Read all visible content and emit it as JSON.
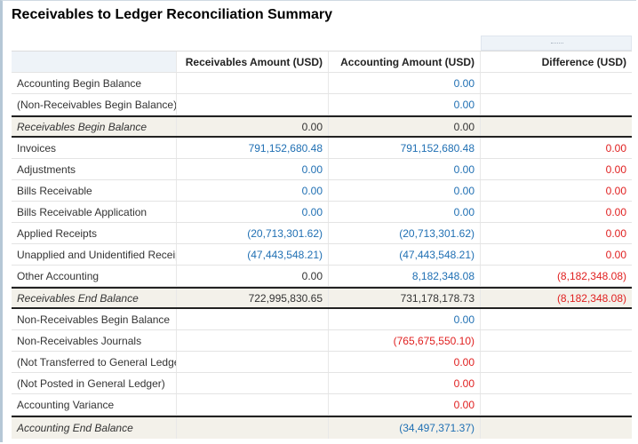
{
  "title": "Receivables to Ledger Reconciliation Summary",
  "headers": {
    "col1": "",
    "col2": "Receivables Amount (USD)",
    "col3": "Accounting Amount (USD)",
    "col4": "Difference (USD)"
  },
  "colors": {
    "link": "#1f6fb3",
    "negative": "#e02020",
    "subtotal_bg": "#f3f1ea"
  },
  "rows": [
    {
      "label": "Accounting Begin Balance",
      "recv": "",
      "acct": "0.00",
      "diff": ""
    },
    {
      "label": "(Non-Receivables Begin Balance)",
      "recv": "",
      "acct": "0.00",
      "diff": ""
    },
    {
      "label": "Receivables Begin Balance",
      "recv": "0.00",
      "acct": "0.00",
      "diff": ""
    },
    {
      "label": "Invoices",
      "recv": "791,152,680.48",
      "acct": "791,152,680.48",
      "diff": "0.00"
    },
    {
      "label": "Adjustments",
      "recv": "0.00",
      "acct": "0.00",
      "diff": "0.00"
    },
    {
      "label": "Bills Receivable",
      "recv": "0.00",
      "acct": "0.00",
      "diff": "0.00"
    },
    {
      "label": "Bills Receivable Application",
      "recv": "0.00",
      "acct": "0.00",
      "diff": "0.00"
    },
    {
      "label": "Applied Receipts",
      "recv": "(20,713,301.62)",
      "acct": "(20,713,301.62)",
      "diff": "0.00"
    },
    {
      "label": "Unapplied and Unidentified Receipts",
      "recv": "(47,443,548.21)",
      "acct": "(47,443,548.21)",
      "diff": "0.00"
    },
    {
      "label": "Other Accounting",
      "recv": "0.00",
      "acct": "8,182,348.08",
      "diff": "(8,182,348.08)"
    },
    {
      "label": "Receivables End Balance",
      "recv": "722,995,830.65",
      "acct": "731,178,178.73",
      "diff": "(8,182,348.08)"
    },
    {
      "label": "Non-Receivables Begin Balance",
      "recv": "",
      "acct": "0.00",
      "diff": ""
    },
    {
      "label": "Non-Receivables Journals",
      "recv": "",
      "acct": "(765,675,550.10)",
      "diff": ""
    },
    {
      "label": "(Not Transferred to General Ledger)",
      "recv": "",
      "acct": "0.00",
      "diff": ""
    },
    {
      "label": "(Not Posted in General Ledger)",
      "recv": "",
      "acct": "0.00",
      "diff": ""
    },
    {
      "label": "Accounting Variance",
      "recv": "",
      "acct": "0.00",
      "diff": ""
    },
    {
      "label": "Accounting End Balance",
      "recv": "",
      "acct": "(34,497,371.37)",
      "diff": ""
    }
  ]
}
